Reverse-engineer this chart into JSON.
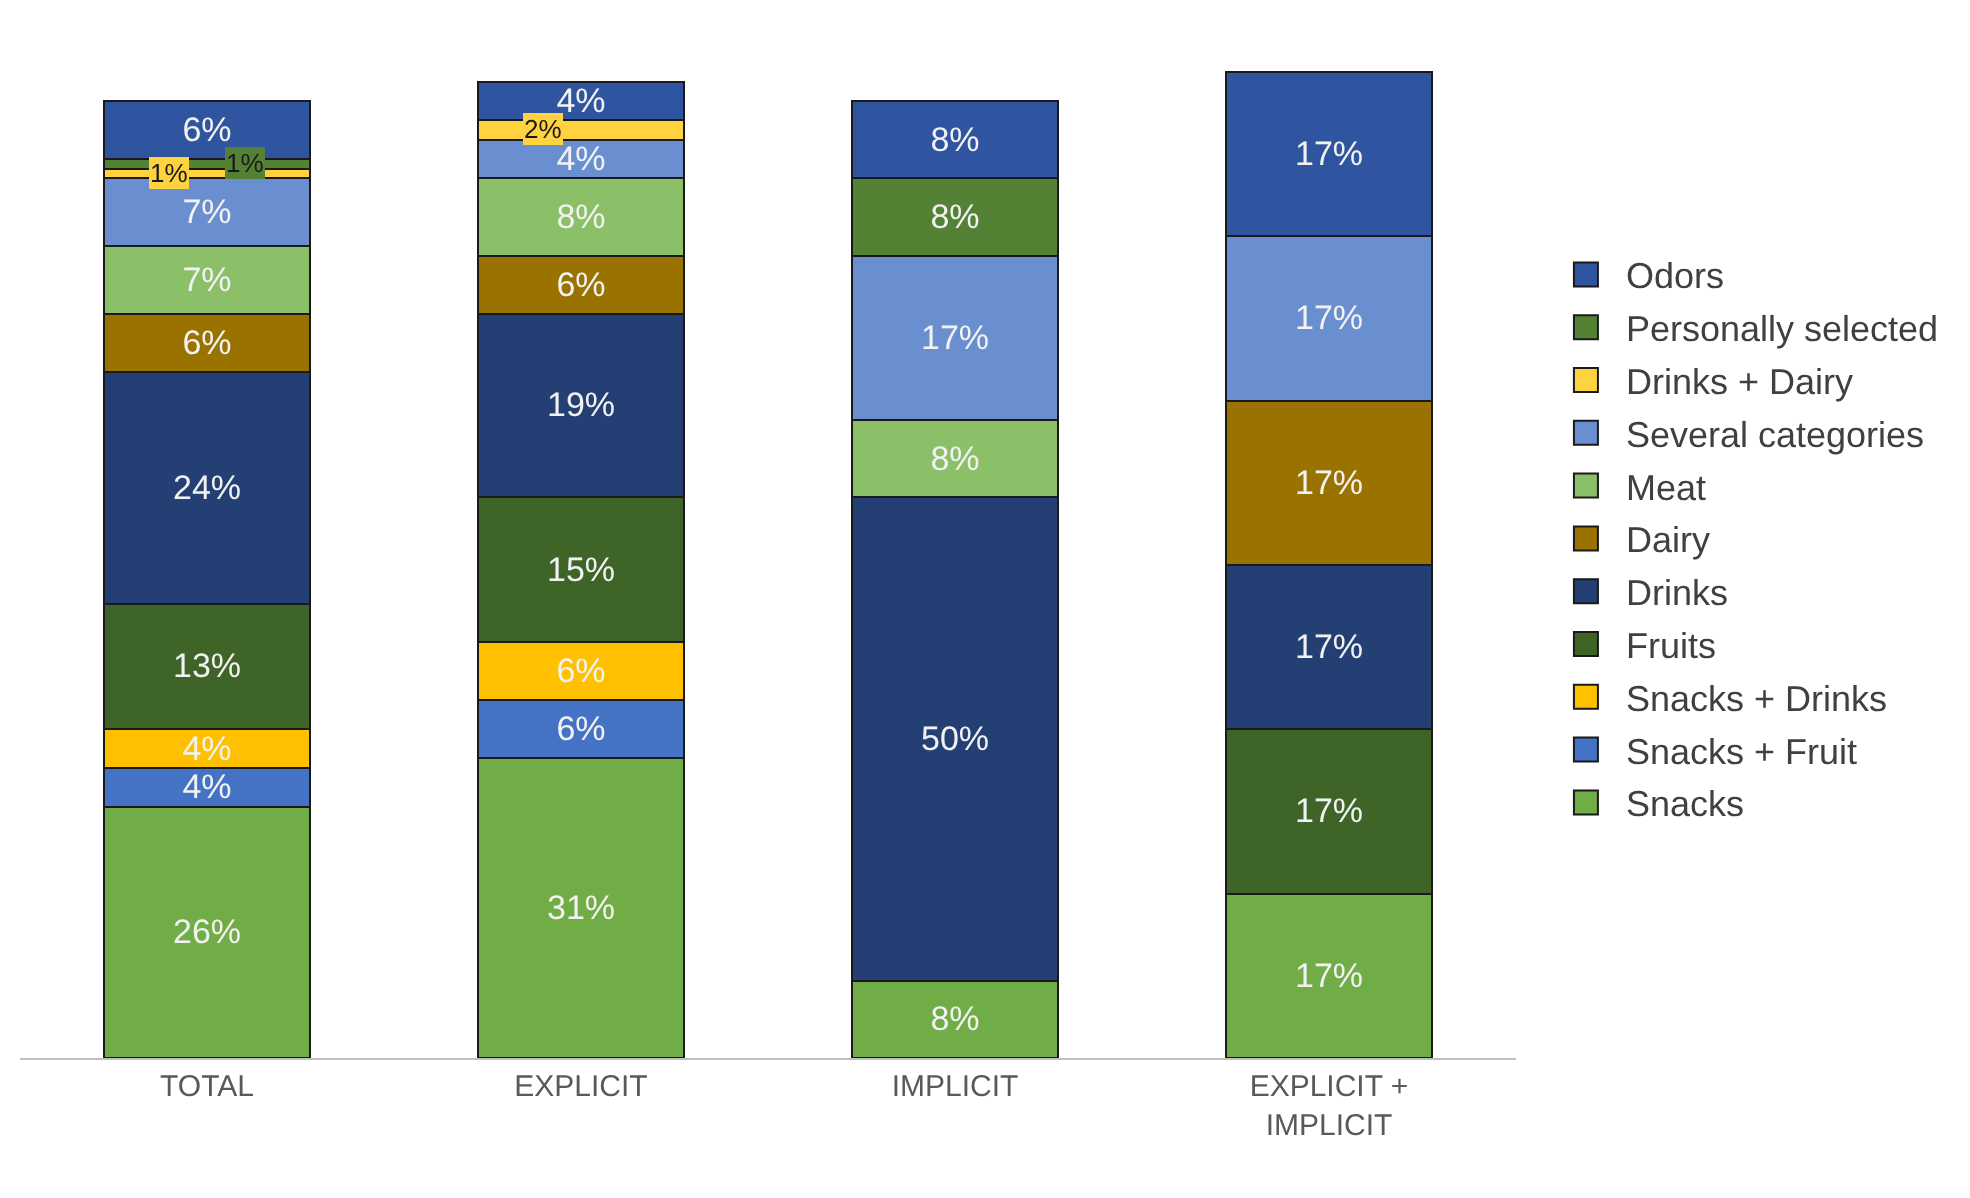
{
  "chart_data": {
    "type": "bar",
    "stacked": true,
    "legend": "right",
    "categories": [
      "TOTAL",
      "EXPLICIT",
      "IMPLICIT",
      "EXPLICIT + IMPLICIT"
    ],
    "series": [
      {
        "name": "Snacks",
        "color": "#70ad47",
        "values": [
          26,
          31,
          8,
          17
        ],
        "value_labels": [
          "26%",
          "31%",
          "8%",
          "17%"
        ]
      },
      {
        "name": "Snacks + Fruit",
        "color": "#4472c4",
        "values": [
          4,
          6,
          null,
          null
        ],
        "value_labels": [
          "4%",
          "6%",
          null,
          null
        ]
      },
      {
        "name": "Snacks + Drinks",
        "color": "#ffc000",
        "values": [
          4,
          6,
          null,
          null
        ],
        "value_labels": [
          "4%",
          "6%",
          null,
          null
        ]
      },
      {
        "name": "Fruits",
        "color": "#3e6427",
        "values": [
          13,
          15,
          null,
          17
        ],
        "value_labels": [
          "13%",
          "15%",
          null,
          "17%"
        ]
      },
      {
        "name": "Drinks",
        "color": "#233f74",
        "values": [
          24,
          19,
          50,
          17
        ],
        "value_labels": [
          "24%",
          "19%",
          "50%",
          "17%"
        ]
      },
      {
        "name": "Dairy",
        "color": "#9a7200",
        "values": [
          6,
          6,
          null,
          17
        ],
        "value_labels": [
          "6%",
          "6%",
          null,
          "17%"
        ]
      },
      {
        "name": "Meat",
        "color": "#8cc068",
        "values": [
          7,
          8,
          8,
          null
        ],
        "value_labels": [
          "7%",
          "8%",
          "8%",
          null
        ]
      },
      {
        "name": "Several categories",
        "color": "#6a8fd0",
        "values": [
          7,
          4,
          17,
          17
        ],
        "value_labels": [
          "7%",
          "4%",
          "17%",
          "17%"
        ]
      },
      {
        "name": "Drinks + Dairy",
        "color": "#ffd23f",
        "values": [
          1,
          2,
          null,
          null
        ],
        "value_labels": [
          "1%",
          "2%",
          null,
          null
        ]
      },
      {
        "name": "Personally selected",
        "color": "#548235",
        "values": [
          1,
          null,
          8,
          null
        ],
        "value_labels": [
          "1%",
          null,
          "8%",
          null
        ]
      },
      {
        "name": "Odors",
        "color": "#2f55a0",
        "values": [
          6,
          4,
          8,
          17
        ],
        "value_labels": [
          "6%",
          "4%",
          "8%",
          "17%"
        ]
      }
    ]
  }
}
